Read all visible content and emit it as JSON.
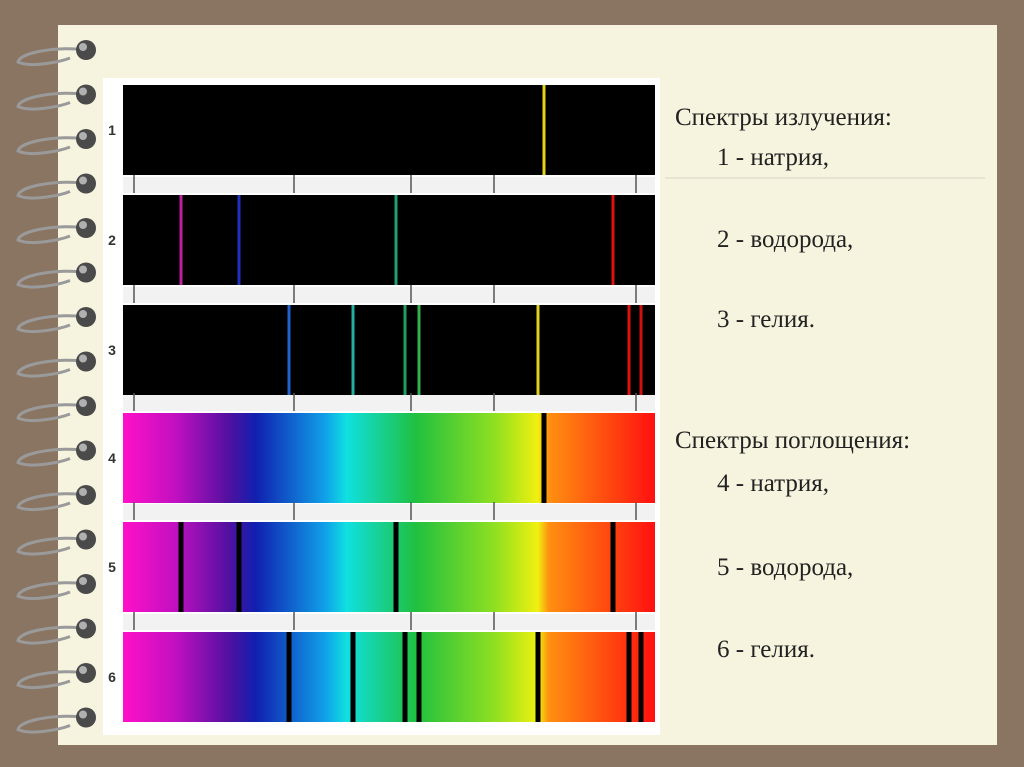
{
  "spectra_labels": [
    "1",
    "2",
    "3",
    "4",
    "5",
    "6"
  ],
  "emission": {
    "title": "Спектры излучения:",
    "items": [
      "1 - натрия,",
      "2 - водорода,",
      "3 - гелия."
    ]
  },
  "absorption": {
    "title": "Спектры поглощения:",
    "items": [
      "4 - натрия,",
      "5 - водорода,",
      "6 - гелия."
    ]
  }
}
